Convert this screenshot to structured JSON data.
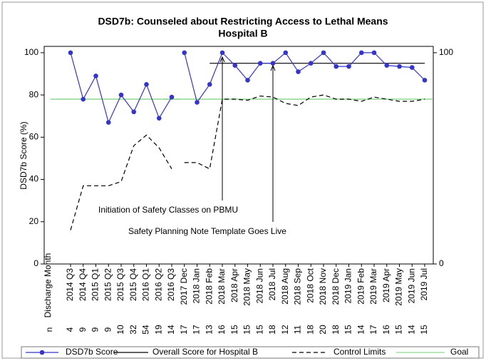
{
  "chart_data": {
    "type": "line",
    "title": "DSD7b: Counseled about Restricting Access to Lethal Means",
    "subtitle": "Hospital B",
    "y_label": "DSD7b Score (%)",
    "x_label": "Discharge Month",
    "n_label": "n",
    "categories": [
      "2014 Q3",
      "2014 Q4",
      "2015 Q1",
      "2015 Q2",
      "2015 Q3",
      "2015 Q4",
      "2016 Q1",
      "2016 Q2",
      "2016 Q3",
      "2017 Dec",
      "2018 Jan",
      "2018 Feb",
      "2018 Mar",
      "2018 Apr",
      "2018 May",
      "2018 Jun",
      "2018 Jul",
      "2018 Aug",
      "2018 Sep",
      "2018 Oct",
      "2018 Nov",
      "2018 Dec",
      "2019 Jan",
      "2019 Feb",
      "2019 Mar",
      "2019 Apr",
      "2019 May",
      "2019 Jun",
      "2019 Jul"
    ],
    "n": [
      4,
      9,
      9,
      9,
      10,
      32,
      54,
      19,
      14,
      17,
      17,
      13,
      16,
      15,
      15,
      15,
      18,
      12,
      11,
      18,
      20,
      18,
      15,
      14,
      17,
      16,
      15,
      14,
      15
    ],
    "line_breaks": [
      9
    ],
    "series": [
      {
        "name": "DSD7b Score",
        "color": "#3535c8",
        "style": "marker",
        "values": [
          100,
          78,
          89,
          67,
          80,
          72,
          85,
          69,
          79,
          100,
          76.5,
          85,
          100,
          94,
          87,
          95,
          95,
          100,
          91,
          95,
          100,
          93.5,
          93.5,
          100,
          100,
          94,
          93.5,
          93,
          87
        ]
      },
      {
        "name": "Overall Score for Hospital B",
        "color": "#000000",
        "style": "solid",
        "values": [
          null,
          null,
          null,
          null,
          null,
          null,
          null,
          null,
          null,
          null,
          null,
          95,
          95,
          95,
          95,
          95,
          95,
          95,
          95,
          95,
          95,
          95,
          95,
          95,
          95,
          95,
          95,
          95,
          95
        ]
      },
      {
        "name": "Control Limits",
        "color": "#000000",
        "style": "dashed",
        "values": [
          16,
          37,
          37,
          37,
          39,
          56,
          61,
          55,
          45,
          48,
          48,
          45,
          78,
          78,
          77.5,
          79.5,
          79,
          76,
          75,
          79,
          80,
          78,
          78,
          77,
          79,
          78,
          77,
          77,
          78
        ]
      },
      {
        "name": "Goal",
        "color": "#8fd88f",
        "style": "goal",
        "values": [
          78,
          78,
          78,
          78,
          78,
          78,
          78,
          78,
          78,
          78,
          78,
          78,
          78,
          78,
          78,
          78,
          78,
          78,
          78,
          78,
          78,
          78,
          78,
          78,
          78,
          78,
          78,
          78,
          78
        ]
      }
    ],
    "annotations": [
      "Initiation of Safety Classes on PBMU",
      "Safety Planning Note Template Goes Live"
    ],
    "ylim": [
      0,
      103
    ],
    "yticks": [
      0,
      20,
      40,
      60,
      80,
      100
    ],
    "y2lim": [
      0,
      103
    ],
    "y2ticks": [
      0,
      100
    ]
  }
}
